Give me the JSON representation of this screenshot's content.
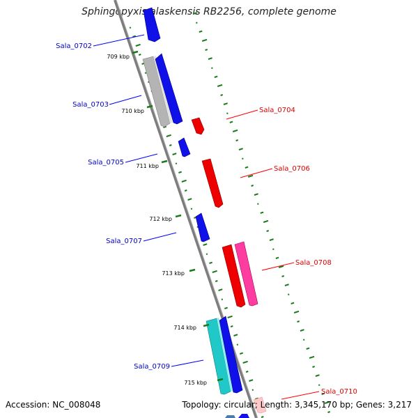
{
  "title": "Sphingopyxis alaskensis RB2256, complete genome",
  "footer": {
    "accession": "Accession: NC_008048",
    "topology": "Topology: circular; Length: 3,345,170 bp; Genes: 3,217"
  },
  "ticks": [
    "709 kbp",
    "710 kbp",
    "711 kbp",
    "712 kbp",
    "713 kbp",
    "714 kbp",
    "715 kbp"
  ],
  "genes_reverse": [
    {
      "label": "Sala_0702",
      "color": "#0000ff"
    },
    {
      "label": "Sala_0703",
      "color": "#0000ff"
    },
    {
      "label": "Sala_0705",
      "color": "#0000ff"
    },
    {
      "label": "Sala_0707",
      "color": "#0000ff"
    },
    {
      "label": "Sala_0709",
      "color": "#0000ff"
    }
  ],
  "genes_forward": [
    {
      "label": "Sala_0704",
      "color": "#ff0000"
    },
    {
      "label": "Sala_0706",
      "color": "#ff0000"
    },
    {
      "label": "Sala_0708",
      "color": "#ff0000"
    },
    {
      "label": "Sala_0710",
      "color": "#ff0000"
    }
  ],
  "colors": {
    "reverse_cds": "#0000ff",
    "forward_cds": "#ff0000",
    "grey_feature": "#b0b0b0",
    "cyan_feature": "#20c8c8",
    "pink_feature": "#ff3da0",
    "light_pink_feature": "#ffc8c8",
    "backbone": "#888888",
    "gc_skew": "#1a7a1a"
  }
}
